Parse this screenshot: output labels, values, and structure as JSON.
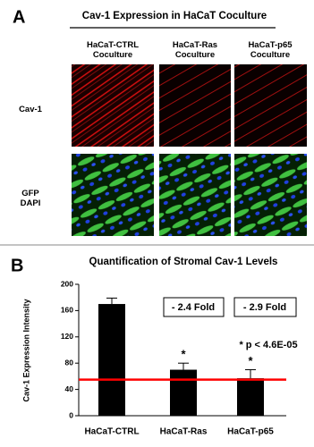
{
  "panel_labels": [
    "A",
    "B"
  ],
  "panel_a": {
    "title": "Cav-1 Expression in HaCaT Coculture",
    "columns": [
      "HaCaT-CTRL\nCoculture",
      "HaCaT-Ras\nCoculture",
      "HaCaT-p65\nCoculture"
    ],
    "rows": [
      "Cav-1",
      "GFP\nDAPI"
    ]
  },
  "chart_data": {
    "type": "bar",
    "title": "Quantification of Stromal Cav-1 Levels",
    "y_label": "Cav-1 Expression Intensity",
    "categories": [
      "HaCaT-CTRL",
      "HaCaT-Ras",
      "HaCaT-p65"
    ],
    "values": [
      170,
      70,
      57
    ],
    "errors": [
      9,
      10,
      13
    ],
    "color": "#000000",
    "significance": [
      null,
      "*",
      "*"
    ],
    "ylim": [
      0,
      200
    ],
    "yticks": [
      0,
      40,
      80,
      120,
      160,
      200
    ],
    "reference_line": {
      "value": 55,
      "color": "#ff0000"
    },
    "annotations": [
      "- 2.4 Fold",
      "- 2.9 Fold",
      "* p < 4.6E-05"
    ]
  }
}
